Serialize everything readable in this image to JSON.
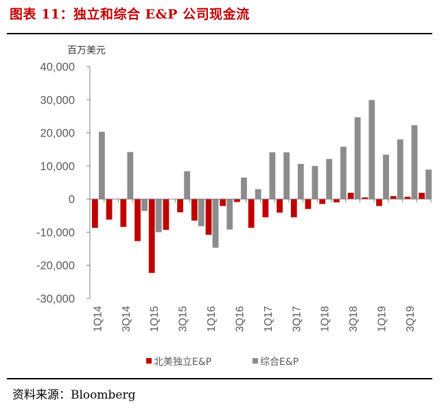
{
  "title": "图表 11：独立和综合 E&P 公司现金流",
  "source": "资料来源：Bloomberg",
  "chart_data": {
    "type": "bar",
    "unit_label": "百万美元",
    "ylim": [
      -30000,
      40000
    ],
    "yticks": [
      40000,
      30000,
      20000,
      10000,
      0,
      -10000,
      -20000,
      -30000
    ],
    "ytick_labels": [
      "40,000",
      "30,000",
      "20,000",
      "10,000",
      "0",
      "-10,000",
      "-20,000",
      "-30,000"
    ],
    "categories": [
      "1Q14",
      "2Q14",
      "3Q14",
      "4Q14",
      "1Q15",
      "2Q15",
      "3Q15",
      "4Q15",
      "1Q16",
      "2Q16",
      "3Q16",
      "4Q16",
      "1Q17",
      "2Q17",
      "3Q17",
      "4Q17",
      "1Q18",
      "2Q18",
      "3Q18",
      "4Q18",
      "1Q19",
      "2Q19",
      "3Q19",
      "4Q19"
    ],
    "xtick_labels": [
      "1Q14",
      "",
      "3Q14",
      "",
      "1Q15",
      "",
      "3Q15",
      "",
      "1Q16",
      "",
      "3Q16",
      "",
      "1Q17",
      "",
      "3Q17",
      "",
      "1Q18",
      "",
      "3Q18",
      "",
      "1Q19",
      "",
      "3Q19",
      ""
    ],
    "series": [
      {
        "name": "北美独立E&P",
        "color": "#c00000",
        "values": [
          -8700,
          -6200,
          -8400,
          -12700,
          -22300,
          -9300,
          -4000,
          -6500,
          -10800,
          -2100,
          -900,
          -8700,
          -5500,
          -4100,
          -5500,
          -3000,
          -1500,
          -1000,
          1900,
          500,
          -2100,
          900,
          700,
          1900
        ]
      },
      {
        "name": "综合E&P",
        "color": "#8c8c8c",
        "values": [
          20300,
          0,
          14200,
          -3600,
          -10000,
          0,
          8400,
          -8200,
          -14700,
          -9200,
          6500,
          3000,
          14100,
          14100,
          10600,
          10000,
          12100,
          15800,
          24700,
          29900,
          13400,
          18000,
          22300,
          8900
        ]
      }
    ],
    "legend_position": "bottom",
    "grid": false
  }
}
